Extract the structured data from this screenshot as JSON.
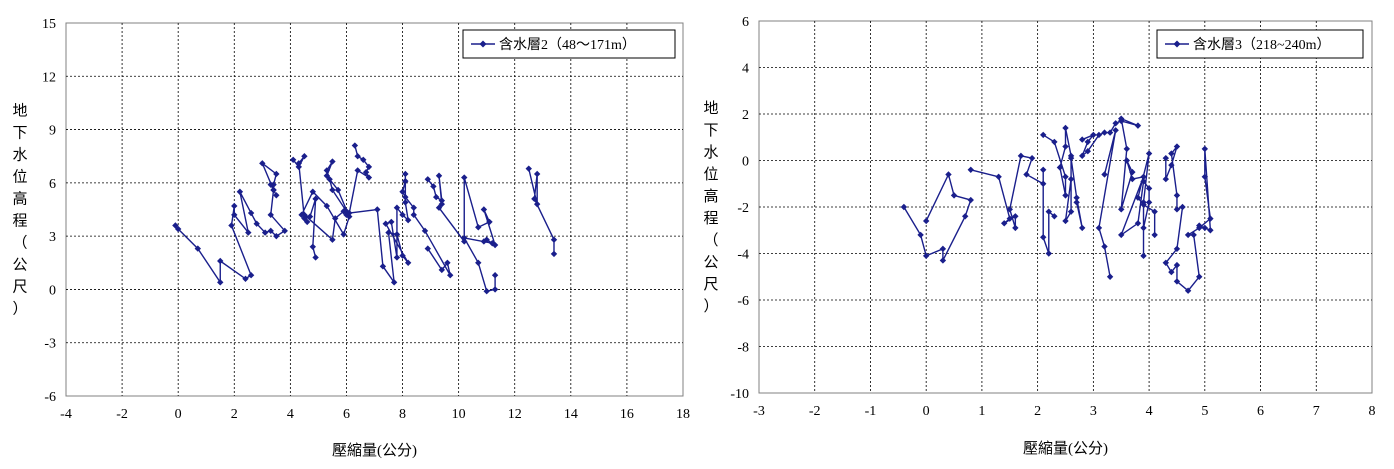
{
  "colors": {
    "series": "#1a1f8c",
    "grid": "#000000",
    "frame": "#808080"
  },
  "chart_data": [
    {
      "type": "line",
      "title": "",
      "xlabel": "壓縮量(公分)",
      "ylabel": "地下水位高程（公尺）",
      "xlim": [
        -4,
        18
      ],
      "ylim": [
        -6,
        15
      ],
      "xticks": [
        -4,
        -2,
        0,
        2,
        4,
        6,
        8,
        10,
        12,
        14,
        16,
        18
      ],
      "yticks": [
        -6,
        -3,
        0,
        3,
        6,
        9,
        12,
        15
      ],
      "legend_position": "top-right",
      "series": [
        {
          "name": "含水層2（48～171m）",
          "segments": [
            [
              [
                -0.1,
                3.6
              ],
              [
                0,
                3.4
              ],
              [
                0.7,
                2.3
              ],
              [
                1.5,
                0.4
              ],
              [
                1.5,
                1.6
              ],
              [
                2.4,
                0.6
              ],
              [
                2.6,
                0.8
              ],
              [
                1.9,
                3.6
              ],
              [
                2,
                4.7
              ],
              [
                2,
                4.2
              ],
              [
                2.5,
                3.2
              ],
              [
                2.2,
                5.5
              ],
              [
                2.6,
                4.3
              ],
              [
                2.8,
                3.7
              ],
              [
                3.1,
                3.2
              ],
              [
                3.3,
                3.3
              ],
              [
                3.5,
                3
              ],
              [
                3.8,
                3.3
              ],
              [
                3.3,
                4.2
              ],
              [
                3.4,
                5.6
              ],
              [
                3,
                7.1
              ],
              [
                3.5,
                6.5
              ],
              [
                3.4,
                5.9
              ],
              [
                3.4,
                5.6
              ],
              [
                3.3,
                5.9
              ],
              [
                3.5,
                5.3
              ]
            ],
            [
              [
                4.1,
                7.3
              ],
              [
                4.3,
                6.9
              ],
              [
                4.5,
                7.5
              ],
              [
                4.3,
                7.1
              ],
              [
                4.5,
                4
              ],
              [
                4.6,
                3.8
              ],
              [
                4.5,
                4.2
              ],
              [
                5.5,
                2.8
              ],
              [
                5.6,
                4
              ],
              [
                5.9,
                4.4
              ],
              [
                6,
                4.2
              ],
              [
                6,
                4.4
              ],
              [
                5.5,
                5.6
              ],
              [
                5.4,
                6.2
              ],
              [
                5.3,
                6.7
              ],
              [
                5.5,
                7.2
              ],
              [
                5.3,
                6.4
              ],
              [
                5.7,
                5.6
              ],
              [
                6.1,
                4.1
              ],
              [
                5.9,
                3.1
              ],
              [
                5.3,
                4.7
              ],
              [
                4.8,
                5.5
              ],
              [
                4.4,
                4.2
              ],
              [
                4.7,
                4.1
              ],
              [
                4.9,
                5.1
              ],
              [
                4.8,
                2.4
              ],
              [
                4.9,
                1.8
              ]
            ],
            [
              [
                6.3,
                8.1
              ],
              [
                6.4,
                7.5
              ],
              [
                6.6,
                7.3
              ],
              [
                6.8,
                6.9
              ],
              [
                6.7,
                6.6
              ],
              [
                6.8,
                6.3
              ],
              [
                6.4,
                6.7
              ],
              [
                6.1,
                4.3
              ],
              [
                7.1,
                4.5
              ],
              [
                7.3,
                1.3
              ],
              [
                7.7,
                0.4
              ],
              [
                7.5,
                3.2
              ],
              [
                7.8,
                3.1
              ],
              [
                8,
                1.9
              ],
              [
                8.2,
                1.5
              ],
              [
                7.4,
                3.7
              ],
              [
                7.6,
                3.8
              ],
              [
                7.8,
                1.8
              ],
              [
                7.8,
                4.6
              ],
              [
                8,
                4.2
              ],
              [
                8.2,
                3.9
              ],
              [
                8.1,
                4.9
              ],
              [
                8.1,
                6.5
              ],
              [
                8.1,
                6.1
              ],
              [
                8,
                5.5
              ],
              [
                8.1,
                5.2
              ],
              [
                8.4,
                4.6
              ],
              [
                8.4,
                4.2
              ],
              [
                8.8,
                3.3
              ],
              [
                9.7,
                0.8
              ],
              [
                9.6,
                1.5
              ],
              [
                9.4,
                1.1
              ],
              [
                8.9,
                2.3
              ]
            ],
            [
              [
                8.9,
                6.2
              ],
              [
                9.1,
                5.8
              ],
              [
                9.2,
                5.2
              ],
              [
                9.4,
                5
              ],
              [
                9.3,
                6.4
              ],
              [
                9.4,
                4.8
              ],
              [
                9.3,
                4.6
              ],
              [
                10.2,
                2.7
              ],
              [
                10.2,
                6.3
              ],
              [
                10.7,
                3.5
              ],
              [
                11.1,
                3.8
              ],
              [
                10.9,
                4.5
              ],
              [
                11.3,
                2.5
              ],
              [
                11,
                2.8
              ],
              [
                10.9,
                2.7
              ],
              [
                11.2,
                2.6
              ],
              [
                10.2,
                2.9
              ],
              [
                10.7,
                1.5
              ],
              [
                11,
                -0.1
              ],
              [
                11.3,
                0
              ],
              [
                11.3,
                0.8
              ]
            ],
            [
              [
                12.5,
                6.8
              ],
              [
                12.8,
                4.8
              ],
              [
                12.8,
                6.5
              ],
              [
                12.7,
                5.1
              ],
              [
                13.4,
                2.8
              ],
              [
                13.4,
                2
              ]
            ]
          ]
        }
      ]
    },
    {
      "type": "line",
      "title": "",
      "xlabel": "壓縮量(公分)",
      "ylabel": "地下水位高程（公尺）",
      "xlim": [
        -3,
        8
      ],
      "ylim": [
        -10,
        6
      ],
      "xticks": [
        -3,
        -2,
        -1,
        0,
        1,
        2,
        3,
        4,
        5,
        6,
        7,
        8
      ],
      "yticks": [
        -10,
        -8,
        -6,
        -4,
        -2,
        0,
        2,
        4,
        6
      ],
      "legend_position": "top-right",
      "series": [
        {
          "name": "含水層3（218~240m）",
          "segments": [
            [
              [
                -0.4,
                -2
              ],
              [
                -0.1,
                -3.2
              ],
              [
                0,
                -4.1
              ],
              [
                0.3,
                -3.8
              ],
              [
                0.3,
                -4.3
              ],
              [
                0.7,
                -2.4
              ],
              [
                0.8,
                -1.7
              ],
              [
                0.5,
                -1.5
              ],
              [
                0.4,
                -0.6
              ],
              [
                0,
                -2.6
              ]
            ],
            [
              [
                0.8,
                -0.4
              ],
              [
                1.3,
                -0.7
              ],
              [
                1.5,
                -2.5
              ],
              [
                1.4,
                -2.7
              ],
              [
                1.6,
                -2.4
              ],
              [
                1.6,
                -2.9
              ],
              [
                1.5,
                -2.1
              ],
              [
                1.7,
                0.2
              ],
              [
                1.9,
                0.1
              ],
              [
                1.8,
                -0.6
              ],
              [
                2.1,
                -1
              ],
              [
                2.1,
                -0.4
              ],
              [
                2.1,
                -3.3
              ],
              [
                2.2,
                -4
              ],
              [
                2.2,
                -2.2
              ],
              [
                2.3,
                -2.4
              ]
            ],
            [
              [
                2.1,
                1.1
              ],
              [
                2.3,
                0.8
              ],
              [
                2.5,
                -0.7
              ],
              [
                2.5,
                -1.5
              ],
              [
                2.4,
                -0.3
              ],
              [
                2.5,
                0.6
              ],
              [
                2.5,
                1.4
              ],
              [
                2.6,
                0.2
              ],
              [
                2.6,
                -0.8
              ],
              [
                2.5,
                -2.6
              ],
              [
                2.6,
                -2.2
              ],
              [
                2.6,
                0.1
              ],
              [
                2.7,
                -1.6
              ],
              [
                2.8,
                -2.9
              ],
              [
                2.7,
                -1.8
              ]
            ],
            [
              [
                2.8,
                0.9
              ],
              [
                3,
                1.1
              ],
              [
                2.9,
                0.8
              ],
              [
                2.8,
                0.2
              ],
              [
                2.9,
                0.4
              ],
              [
                3.1,
                1.1
              ],
              [
                3.2,
                1.2
              ],
              [
                3.3,
                1.2
              ],
              [
                3.4,
                1.6
              ],
              [
                3.5,
                1.7
              ],
              [
                3.8,
                1.5
              ],
              [
                3.5,
                1.8
              ],
              [
                3.6,
                0.5
              ],
              [
                3.5,
                -2.1
              ],
              [
                3.7,
                -0.5
              ],
              [
                3.6,
                0
              ],
              [
                3.7,
                -0.8
              ],
              [
                3.9,
                -0.7
              ],
              [
                3.5,
                -3.2
              ],
              [
                3.8,
                -2.7
              ],
              [
                3.9,
                -0.9
              ],
              [
                4,
                -1.2
              ],
              [
                4,
                -1.8
              ],
              [
                3.9,
                -2.9
              ],
              [
                3.9,
                -4.1
              ],
              [
                3.9,
                -1.8
              ],
              [
                4,
                0.3
              ],
              [
                3.8,
                -1.6
              ],
              [
                3.9,
                -1.9
              ],
              [
                4.1,
                -2.2
              ],
              [
                4.1,
                -3.2
              ]
            ],
            [
              [
                4.3,
                0.1
              ],
              [
                4.3,
                -0.8
              ],
              [
                4.4,
                -0.2
              ],
              [
                4.5,
                0.6
              ],
              [
                4.4,
                0.3
              ],
              [
                4.5,
                -1.5
              ],
              [
                4.5,
                -2.1
              ],
              [
                4.6,
                -2
              ],
              [
                4.5,
                -3.8
              ],
              [
                4.3,
                -4.4
              ],
              [
                4.4,
                -4.8
              ],
              [
                4.5,
                -4.5
              ],
              [
                4.5,
                -5.2
              ],
              [
                4.7,
                -5.6
              ],
              [
                4.9,
                -5
              ],
              [
                4.8,
                -3.2
              ],
              [
                4.7,
                -3.2
              ],
              [
                4.9,
                -2.9
              ],
              [
                5.1,
                -2.5
              ],
              [
                5,
                -0.7
              ],
              [
                5,
                0.5
              ],
              [
                5.1,
                -3
              ],
              [
                5,
                -2.9
              ],
              [
                4.9,
                -2.8
              ]
            ],
            [
              [
                3.3,
                -5
              ],
              [
                3.2,
                -3.7
              ],
              [
                3.1,
                -2.9
              ],
              [
                3.4,
                1.3
              ],
              [
                3.2,
                -0.6
              ]
            ]
          ]
        }
      ]
    }
  ]
}
